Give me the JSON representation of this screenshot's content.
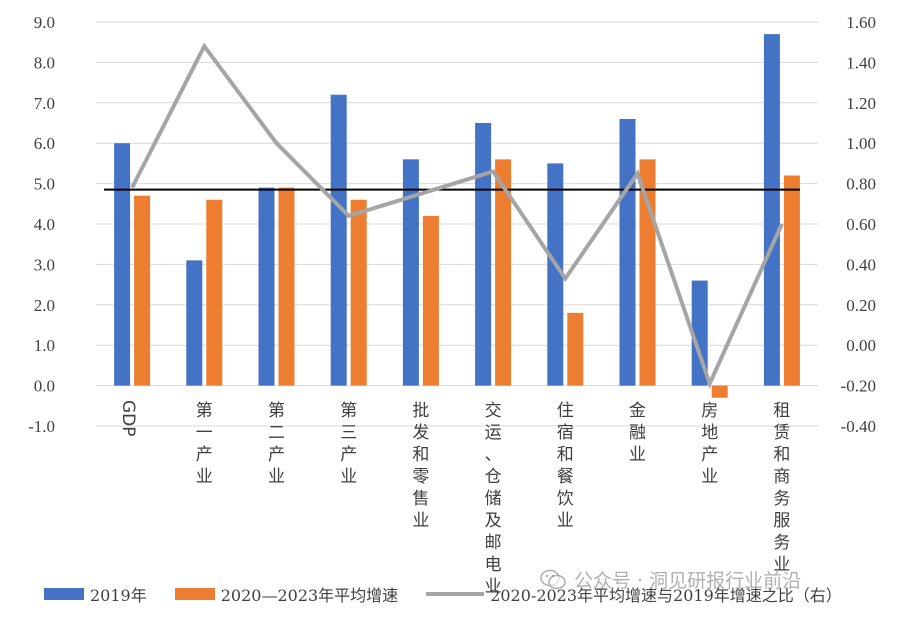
{
  "chart_data": {
    "type": "bar",
    "categories": [
      "GDP",
      "第一产业",
      "第二产业",
      "第三产业",
      "批发和零售业",
      "交运、仓储及邮电业",
      "住宿和餐饮业",
      "金融业",
      "房地产业",
      "租赁和商务服务业"
    ],
    "series": [
      {
        "name": "2019年",
        "type": "bar",
        "axis": "left",
        "color": "#4472c4",
        "values": [
          6.0,
          3.1,
          4.9,
          7.2,
          5.6,
          6.5,
          5.5,
          6.6,
          2.6,
          8.7
        ]
      },
      {
        "name": "2020—2023年平均增速",
        "type": "bar",
        "axis": "left",
        "color": "#ed7d31",
        "values": [
          4.7,
          4.6,
          4.9,
          4.6,
          4.2,
          5.6,
          1.8,
          5.6,
          -0.3,
          5.2
        ]
      },
      {
        "name": "2020-2023年平均增速与2019年增速之比（右）",
        "type": "line",
        "axis": "right",
        "color": "#a5a5a5",
        "values": [
          0.78,
          1.48,
          1.0,
          0.64,
          0.75,
          0.86,
          0.33,
          0.85,
          -0.19,
          0.6
        ]
      }
    ],
    "reference_line": {
      "axis": "right",
      "value": 0.77,
      "color": "#000000"
    },
    "y_left": {
      "lim": [
        -1.0,
        9.0
      ],
      "ticks": [
        "9.0",
        "8.0",
        "7.0",
        "6.0",
        "5.0",
        "4.0",
        "3.0",
        "2.0",
        "1.0",
        "0.0",
        "-1.0"
      ]
    },
    "y_right": {
      "lim": [
        -0.4,
        1.6
      ],
      "ticks": [
        "1.60",
        "1.40",
        "1.20",
        "1.00",
        "0.80",
        "0.60",
        "0.40",
        "0.20",
        "0.00",
        "-0.20",
        "-0.40"
      ]
    },
    "grid": true,
    "legend_position": "bottom"
  },
  "legend": {
    "item1": "2019年",
    "item2": "2020—2023年平均增速",
    "item3": "2020-2023年平均增速与2019年增速之比（右）"
  },
  "watermark": {
    "text": "公众号 · 洞见研报行业前沿",
    "icon": "wechat-icon"
  }
}
